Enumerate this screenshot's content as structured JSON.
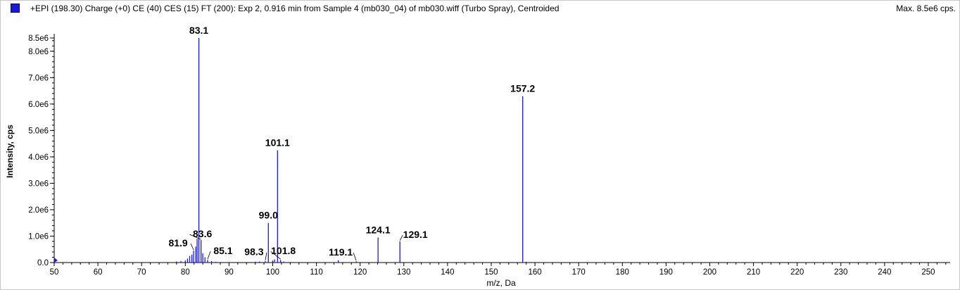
{
  "header": {
    "title": "+EPI (198.30) Charge (+0) CE (40) CES (15) FT (200): Exp 2, 0.916 min from Sample 4 (mb030_04) of mb030.wiff (Turbo Spray), Centroided",
    "max_label": "Max. 8.5e6 cps.",
    "series_color": "#1a1ad6"
  },
  "chart_data": {
    "type": "bar",
    "xlabel": "m/z, Da",
    "ylabel": "Intensity, cps",
    "xlim": [
      50,
      255
    ],
    "ylim": [
      0,
      8500000
    ],
    "x_ticks": [
      50,
      60,
      70,
      80,
      90,
      100,
      110,
      120,
      130,
      140,
      150,
      160,
      170,
      180,
      190,
      200,
      210,
      220,
      230,
      240,
      250
    ],
    "y_ticks": [
      {
        "v": 0,
        "label": "0.0"
      },
      {
        "v": 1000000,
        "label": "1.0e6"
      },
      {
        "v": 2000000,
        "label": "2.0e6"
      },
      {
        "v": 3000000,
        "label": "3.0e6"
      },
      {
        "v": 4000000,
        "label": "4.0e6"
      },
      {
        "v": 5000000,
        "label": "5.0e6"
      },
      {
        "v": 6000000,
        "label": "6.0e6"
      },
      {
        "v": 7000000,
        "label": "7.0e6"
      },
      {
        "v": 8000000,
        "label": "8.0e6"
      },
      {
        "v": 8500000,
        "label": "8.5e6"
      }
    ],
    "peaks": [
      {
        "mz": 50.0,
        "intensity": 120000
      },
      {
        "mz": 78.0,
        "intensity": 40000
      },
      {
        "mz": 79.0,
        "intensity": 60000
      },
      {
        "mz": 80.0,
        "intensity": 80000
      },
      {
        "mz": 80.5,
        "intensity": 150000
      },
      {
        "mz": 81.0,
        "intensity": 250000
      },
      {
        "mz": 81.5,
        "intensity": 300000
      },
      {
        "mz": 81.9,
        "intensity": 450000
      },
      {
        "mz": 82.4,
        "intensity": 600000
      },
      {
        "mz": 82.7,
        "intensity": 900000
      },
      {
        "mz": 83.1,
        "intensity": 8500000
      },
      {
        "mz": 83.6,
        "intensity": 850000
      },
      {
        "mz": 84.0,
        "intensity": 350000
      },
      {
        "mz": 84.5,
        "intensity": 200000
      },
      {
        "mz": 85.1,
        "intensity": 100000
      },
      {
        "mz": 86.0,
        "intensity": 60000
      },
      {
        "mz": 87.0,
        "intensity": 30000
      },
      {
        "mz": 96.0,
        "intensity": 30000
      },
      {
        "mz": 97.0,
        "intensity": 40000
      },
      {
        "mz": 98.3,
        "intensity": 60000
      },
      {
        "mz": 99.0,
        "intensity": 1500000
      },
      {
        "mz": 100.0,
        "intensity": 80000
      },
      {
        "mz": 100.4,
        "intensity": 120000
      },
      {
        "mz": 101.1,
        "intensity": 4250000
      },
      {
        "mz": 101.8,
        "intensity": 100000
      },
      {
        "mz": 102.5,
        "intensity": 40000
      },
      {
        "mz": 115.0,
        "intensity": 90000
      },
      {
        "mz": 119.1,
        "intensity": 50000
      },
      {
        "mz": 124.1,
        "intensity": 950000
      },
      {
        "mz": 129.1,
        "intensity": 800000
      },
      {
        "mz": 157.2,
        "intensity": 6300000
      },
      {
        "mz": 158.0,
        "intensity": 30000
      },
      {
        "mz": 159.0,
        "intensity": 20000
      }
    ],
    "labels": [
      {
        "text": "83.1",
        "mz": 83.1,
        "intensity": 8500000
      },
      {
        "text": "157.2",
        "mz": 157.2,
        "intensity": 6300000
      },
      {
        "text": "101.1",
        "mz": 101.1,
        "intensity": 4250000
      },
      {
        "text": "99.0",
        "mz": 99.0,
        "intensity": 1500000
      },
      {
        "text": "124.1",
        "mz": 124.1,
        "intensity": 950000
      },
      {
        "text": "129.1",
        "mz": 129.1,
        "intensity": 800000
      },
      {
        "text": "83.6",
        "mz": 83.6,
        "intensity": 850000
      },
      {
        "text": "81.9",
        "mz": 81.9,
        "intensity": 450000
      },
      {
        "text": "85.1",
        "mz": 85.1,
        "intensity": 100000
      },
      {
        "text": "98.3",
        "mz": 98.3,
        "intensity": 60000
      },
      {
        "text": "101.8",
        "mz": 101.8,
        "intensity": 100000
      },
      {
        "text": "119.1",
        "mz": 119.1,
        "intensity": 50000
      }
    ]
  }
}
